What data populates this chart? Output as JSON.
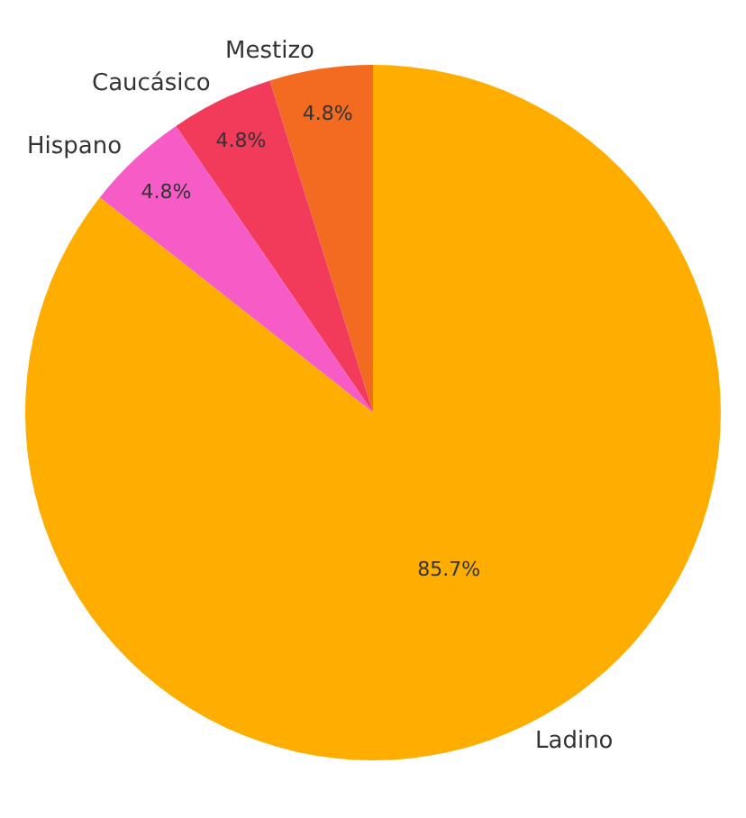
{
  "chart_data": {
    "type": "pie",
    "categories": [
      "Mestizo",
      "Caucásico",
      "Hispano",
      "Ladino"
    ],
    "values": [
      4.8,
      4.8,
      4.8,
      85.7
    ],
    "colors": [
      "#f26b21",
      "#f23a5b",
      "#f75bc6",
      "#ffae00"
    ],
    "value_labels": [
      "4.8%",
      "4.8%",
      "4.8%",
      "85.7%"
    ],
    "legend": false
  }
}
